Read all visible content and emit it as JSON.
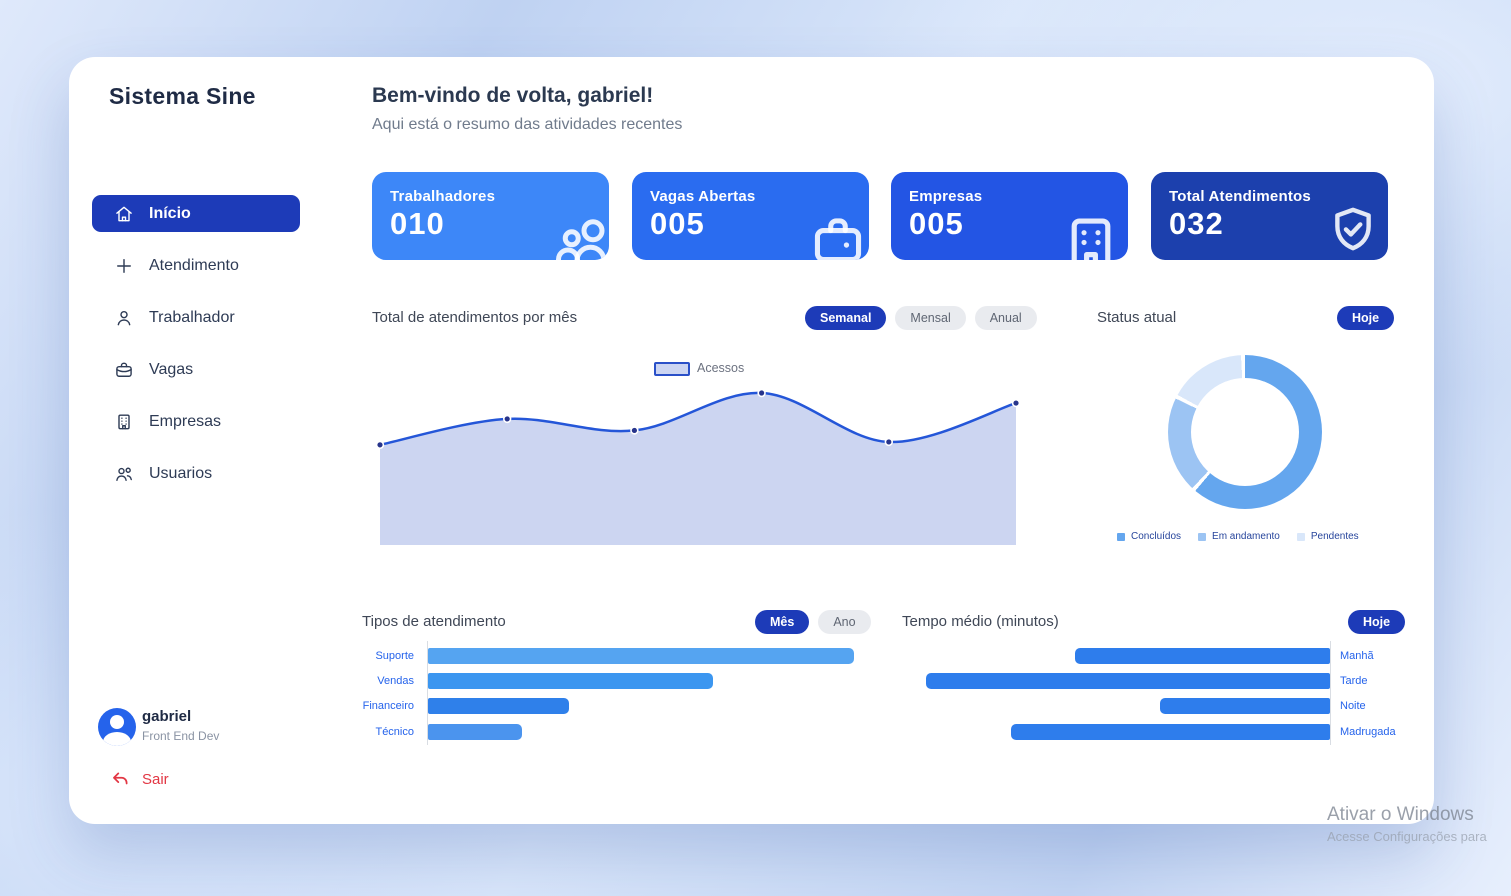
{
  "app": {
    "title": "Sistema Sine"
  },
  "header": {
    "welcome": "Bem-vindo de volta, gabriel!",
    "subtitle": "Aqui está o resumo das atividades recentes"
  },
  "sidebar": {
    "items": [
      {
        "label": "Início",
        "icon": "home-icon",
        "active": true
      },
      {
        "label": "Atendimento",
        "icon": "plus-icon",
        "active": false
      },
      {
        "label": "Trabalhador",
        "icon": "person-icon",
        "active": false
      },
      {
        "label": "Vagas",
        "icon": "briefcase-icon",
        "active": false
      },
      {
        "label": "Empresas",
        "icon": "building-icon",
        "active": false
      },
      {
        "label": "Usuarios",
        "icon": "users-icon",
        "active": false
      }
    ],
    "user": {
      "name": "gabriel",
      "role": "Front End Dev"
    },
    "logout_label": "Sair"
  },
  "stats": {
    "cards": [
      {
        "label": "Trabalhadores",
        "value": "010",
        "icon": "people-icon",
        "color": "#3d87f8"
      },
      {
        "label": "Vagas Abertas",
        "value": "005",
        "icon": "briefcase-icon",
        "color": "#2a6cf0"
      },
      {
        "label": "Empresas",
        "value": "005",
        "icon": "building-icon",
        "color": "#2355e4"
      },
      {
        "label": "Total Atendimentos",
        "value": "032",
        "icon": "shield-check-icon",
        "color": "#1c40ad"
      }
    ]
  },
  "sections": {
    "atendimentos": {
      "title": "Total de atendimentos por mês",
      "filters": [
        "Semanal",
        "Mensal",
        "Anual"
      ],
      "active_filter": "Semanal",
      "legend_label": "Acessos"
    },
    "status": {
      "title": "Status atual",
      "filter_label": "Hoje"
    },
    "tipos": {
      "title": "Tipos de atendimento",
      "filters": [
        "Mês",
        "Ano"
      ],
      "active_filter": "Mês"
    },
    "tempo": {
      "title": "Tempo médio (minutos)",
      "filter_label": "Hoje"
    }
  },
  "chart_data": [
    {
      "id": "atendimentos-area",
      "type": "area",
      "title": "Total de atendimentos por mês",
      "x": [
        1,
        2,
        3,
        4,
        5,
        6
      ],
      "series": [
        {
          "name": "Acessos",
          "values": [
            64,
            82,
            74,
            100,
            66,
            93
          ]
        }
      ],
      "note": "smooth area line, 6 marked points, no axis tick labels; values are relative % of max",
      "line_color": "#2456d8",
      "fill_color": "#ccd5f1",
      "dot_color": "#27348b",
      "grid": false,
      "legend_position": "top-center"
    },
    {
      "id": "status-donut",
      "type": "pie",
      "title": "Status atual",
      "labels": [
        "Concluídos",
        "Em andamento",
        "Pendentes"
      ],
      "values": [
        62,
        21,
        17
      ],
      "colors": [
        "#64a6ee",
        "#9cc4f3",
        "#d9e7fa"
      ],
      "note": "donut starting at 12 o'clock, thin white gaps between slices; percentages estimated",
      "legend_position": "bottom"
    },
    {
      "id": "tipos-bar",
      "type": "bar",
      "title": "Tipos de atendimento",
      "orientation": "horizontal-left",
      "categories": [
        "Suporte",
        "Vendas",
        "Financeiro",
        "Técnico"
      ],
      "values": [
        100,
        67,
        33,
        22
      ],
      "colors": [
        "#55a4f1",
        "#3b96f0",
        "#2f80ea",
        "#4b94ee"
      ],
      "note": "no axis tick labels; values are relative % of longest bar"
    },
    {
      "id": "tempo-bar",
      "type": "bar",
      "title": "Tempo médio (minutos)",
      "orientation": "horizontal-right",
      "categories": [
        "Manhã",
        "Tarde",
        "Noite",
        "Madrugada"
      ],
      "values": [
        63,
        100,
        42,
        79
      ],
      "color": "#2e7dec",
      "note": "bars anchored to right axis, labels on right; values are relative % of longest bar"
    }
  ],
  "watermark": {
    "line1": "Ativar o Windows",
    "line2": "Acesse Configurações para"
  },
  "colors": {
    "accent": "#1d3bb8",
    "pill_inactive_bg": "#e9ebef",
    "pill_inactive_text": "#5f6673",
    "label_blue": "#2563eb",
    "logout_red": "#e23744",
    "card_background": "#ffffff"
  }
}
